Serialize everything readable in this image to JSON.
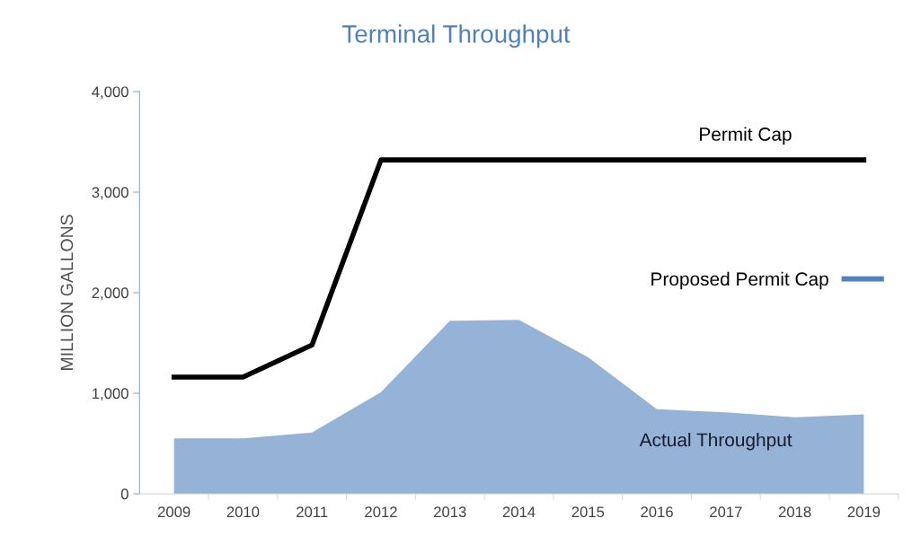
{
  "chart_data": {
    "type": "line",
    "title": "Terminal Throughput",
    "ylabel": "MILLION GALLONS",
    "categories": [
      "2009",
      "2010",
      "2011",
      "2012",
      "2013",
      "2014",
      "2015",
      "2016",
      "2017",
      "2018",
      "2019"
    ],
    "ylim": [
      0,
      4000
    ],
    "yticks": [
      {
        "value": 0,
        "label": "0"
      },
      {
        "value": 1000,
        "label": "1,000"
      },
      {
        "value": 2000,
        "label": "2,000"
      },
      {
        "value": 3000,
        "label": "3,000"
      },
      {
        "value": 4000,
        "label": "4,000"
      }
    ],
    "grid": false,
    "legend": "right",
    "series": [
      {
        "name": "Actual Throughput",
        "type": "area",
        "color": "#95b3d7",
        "values": [
          550,
          550,
          610,
          1010,
          1720,
          1730,
          1360,
          840,
          810,
          760,
          790
        ]
      },
      {
        "name": "Permit Cap",
        "color": "#000000",
        "values": [
          1160,
          1160,
          1480,
          3320,
          3320,
          3320,
          3320,
          3320,
          3320,
          3320,
          3320
        ]
      },
      {
        "name": "Proposed Permit Cap",
        "color": "#4f81bd",
        "values": [
          null,
          null,
          null,
          null,
          null,
          null,
          null,
          null,
          null,
          null,
          null
        ]
      }
    ]
  }
}
